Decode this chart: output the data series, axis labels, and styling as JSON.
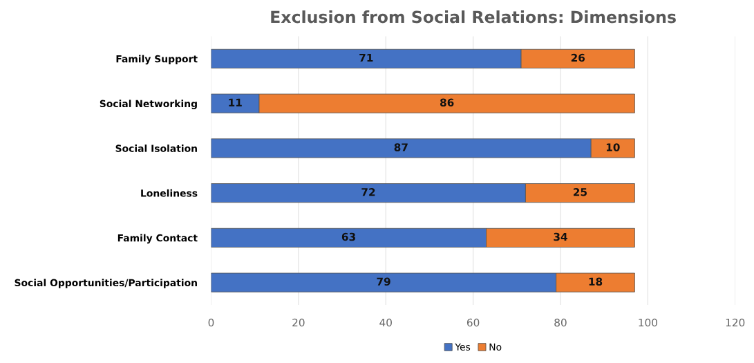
{
  "chart_data": {
    "type": "bar",
    "orientation": "horizontal",
    "stacked": true,
    "title": "Exclusion from Social Relations: Dimensions",
    "categories": [
      "Family Support",
      "Social Networking",
      "Social Isolation",
      "Loneliness",
      "Family Contact",
      "Social Opportunities/Participation"
    ],
    "series": [
      {
        "name": "Yes",
        "color": "#4472c4",
        "values": [
          71,
          11,
          87,
          72,
          63,
          79
        ]
      },
      {
        "name": "No",
        "color": "#ed7d31",
        "values": [
          26,
          86,
          10,
          25,
          34,
          18
        ]
      }
    ],
    "xlim": [
      0,
      120
    ],
    "xticks": [
      0,
      20,
      40,
      60,
      80,
      100,
      120
    ],
    "grid": "x",
    "legend": "bottom",
    "data_labels": true
  }
}
